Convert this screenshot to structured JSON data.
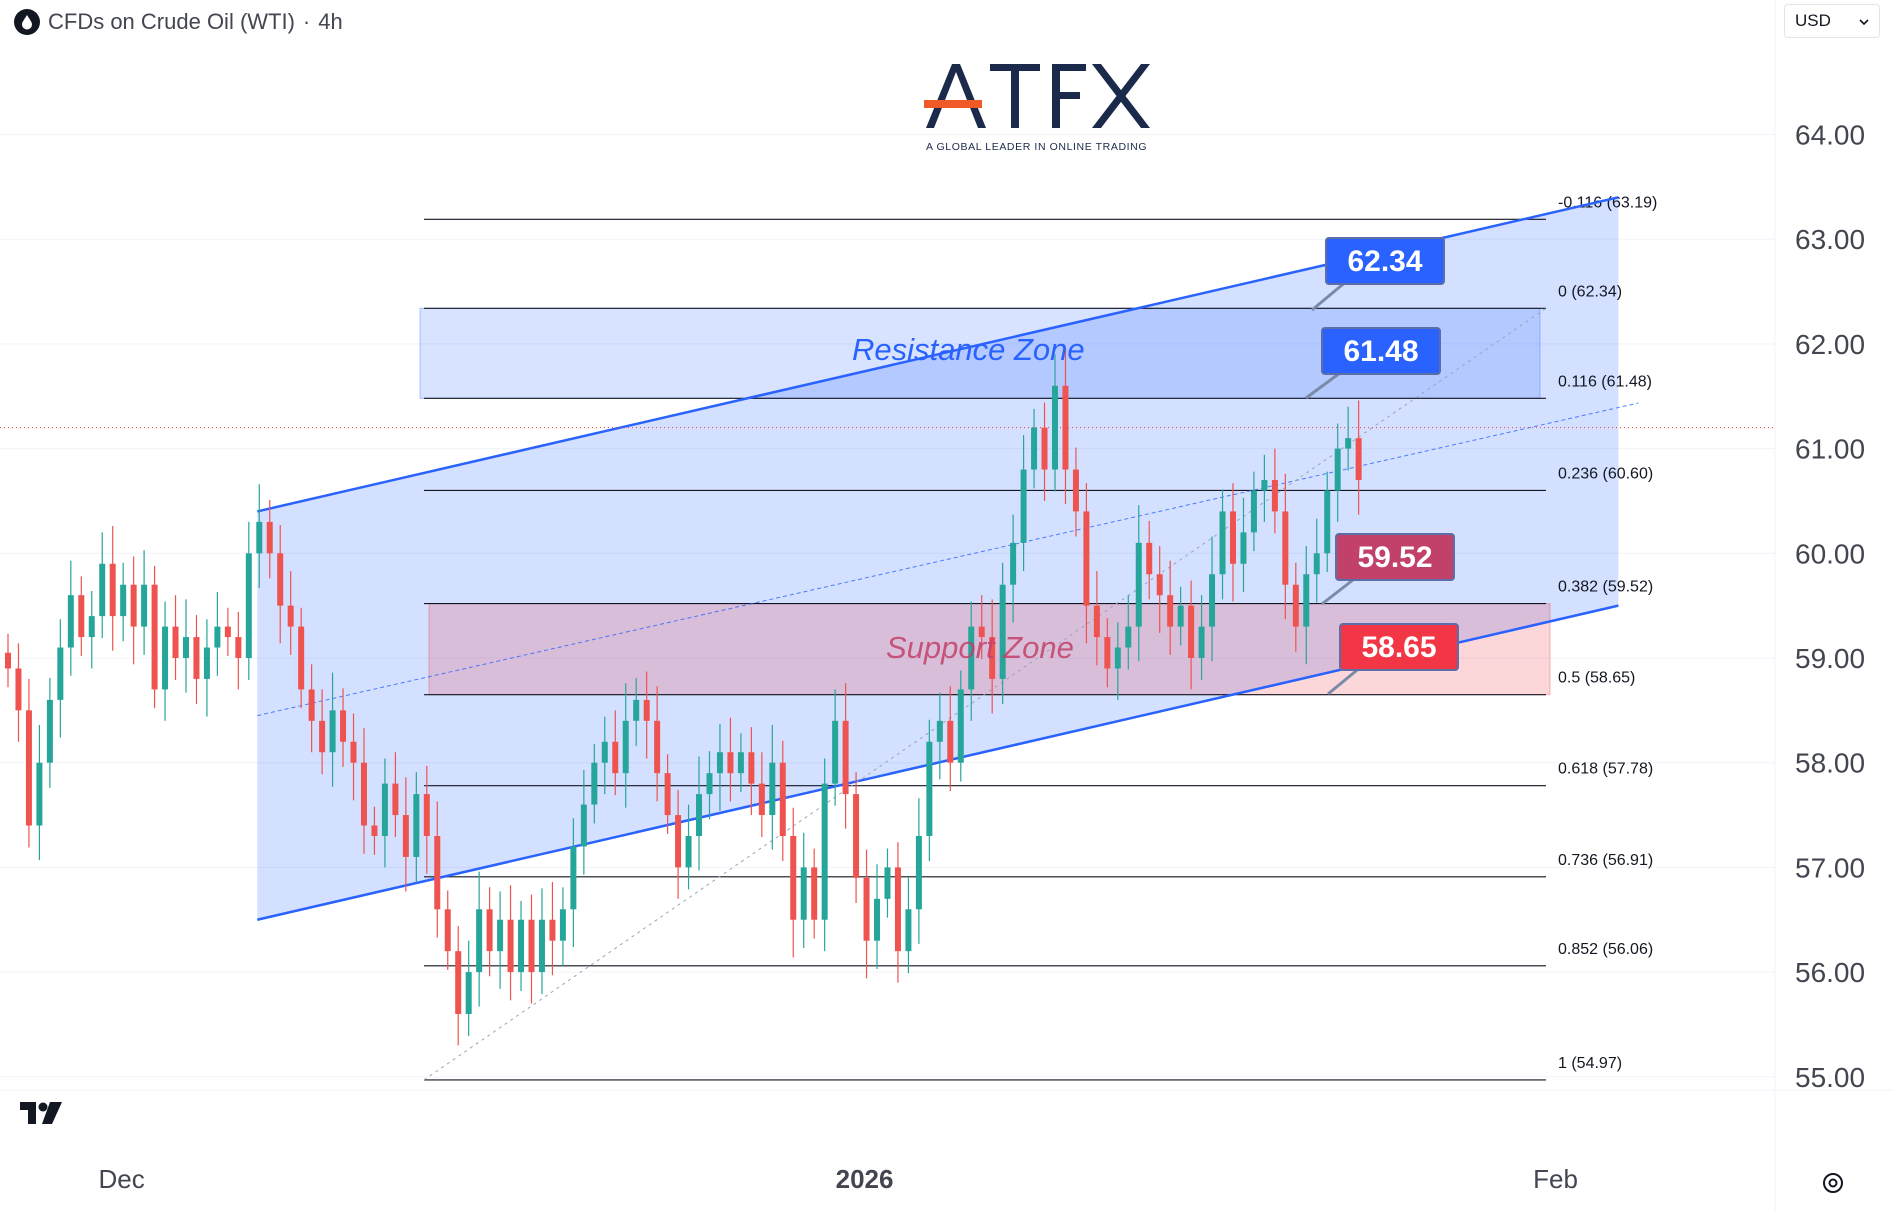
{
  "header": {
    "symbol": "CFDs on Crude Oil (WTI)",
    "separator": "·",
    "interval": "4h"
  },
  "currency": {
    "label": "USD"
  },
  "logo": {
    "name": "ATFX",
    "tagline": "A GLOBAL LEADER IN ONLINE TRADING"
  },
  "colors": {
    "up": "#26a69a",
    "down": "#ef5350",
    "channel": "#2962ff",
    "resistance": "#2962ff",
    "support": "#f23645",
    "support_label": "#c2416a"
  },
  "chart_data": {
    "type": "candlestick",
    "symbol": "CFDs on Crude Oil (WTI)",
    "interval": "4h",
    "ylim": [
      54.3,
      65.3
    ],
    "yticks": [
      {
        "value": 64,
        "label": "64.00"
      },
      {
        "value": 63,
        "label": "63.00"
      },
      {
        "value": 62,
        "label": "62.00"
      },
      {
        "value": 61,
        "label": "61.00"
      },
      {
        "value": 60,
        "label": "60.00"
      },
      {
        "value": 59,
        "label": "59.00"
      },
      {
        "value": 58,
        "label": "58.00"
      },
      {
        "value": 57,
        "label": "57.00"
      },
      {
        "value": 56,
        "label": "56.00"
      },
      {
        "value": 55,
        "label": "55.00"
      }
    ],
    "xticks": [
      {
        "label": "Dec",
        "index": 12
      },
      {
        "label": "2026",
        "index": 82
      },
      {
        "label": "Feb",
        "index": 148
      }
    ],
    "candles_close": [
      58.9,
      58.5,
      57.4,
      58.0,
      58.6,
      59.1,
      59.6,
      59.2,
      59.4,
      59.9,
      59.4,
      59.7,
      59.3,
      59.7,
      58.7,
      59.3,
      59.0,
      59.2,
      58.8,
      59.1,
      59.3,
      59.2,
      59.0,
      60.0,
      60.3,
      60.0,
      59.5,
      59.3,
      58.7,
      58.4,
      58.1,
      58.5,
      58.2,
      58.0,
      57.4,
      57.3,
      57.8,
      57.5,
      57.1,
      57.7,
      57.3,
      56.6,
      56.2,
      55.6,
      56.0,
      56.6,
      56.2,
      56.5,
      56.0,
      56.5,
      56.0,
      56.5,
      56.3,
      56.6,
      57.2,
      57.6,
      58.0,
      58.2,
      57.9,
      58.4,
      58.6,
      58.4,
      57.9,
      57.5,
      57.0,
      57.3,
      57.7,
      57.9,
      58.1,
      57.9,
      58.1,
      57.8,
      57.5,
      58.0,
      57.3,
      56.5,
      57.0,
      56.5,
      57.8,
      58.4,
      57.7,
      56.9,
      56.3,
      56.7,
      57.0,
      56.2,
      56.6,
      57.3,
      58.2,
      58.4,
      58.0,
      58.7,
      59.3,
      59.2,
      58.8,
      59.7,
      60.1,
      60.8,
      61.2,
      60.8,
      61.6,
      60.8,
      60.4,
      59.5,
      59.2,
      58.9,
      59.1,
      59.3,
      60.1,
      59.8,
      59.6,
      59.3,
      59.5,
      59.0,
      59.3,
      59.8,
      60.4,
      59.9,
      60.2,
      60.6,
      60.7,
      60.4,
      59.7,
      59.3,
      59.8,
      60.0,
      60.6,
      61.0,
      61.1,
      60.7
    ],
    "candle_count_note": "",
    "horizontal_levels": [
      {
        "ratio": "-0.116",
        "value": 63.19,
        "label": "-0.116 (63.19)"
      },
      {
        "ratio": "0",
        "value": 62.34,
        "label": "0 (62.34)"
      },
      {
        "ratio": "0.116",
        "value": 61.48,
        "label": "0.116 (61.48)"
      },
      {
        "ratio": "0.236",
        "value": 60.6,
        "label": "0.236 (60.60)"
      },
      {
        "ratio": "0.382",
        "value": 59.52,
        "label": "0.382 (59.52)"
      },
      {
        "ratio": "0.5",
        "value": 58.65,
        "label": "0.5 (58.65)"
      },
      {
        "ratio": "0.618",
        "value": 57.78,
        "label": "0.618 (57.78)"
      },
      {
        "ratio": "0.736",
        "value": 56.91,
        "label": "0.736 (56.91)"
      },
      {
        "ratio": "0.852",
        "value": 56.06,
        "label": "0.852 (56.06)"
      },
      {
        "ratio": "1",
        "value": 54.97,
        "label": "1 (54.97)"
      }
    ],
    "zones": [
      {
        "name": "Resistance Zone",
        "from": 61.48,
        "to": 62.34
      },
      {
        "name": "Support Zone",
        "from": 58.65,
        "to": 59.52
      }
    ],
    "price_callouts": [
      {
        "label": "62.34",
        "kind": "resistance"
      },
      {
        "label": "61.48",
        "kind": "resistance"
      },
      {
        "label": "59.52",
        "kind": "support"
      },
      {
        "label": "58.65",
        "kind": "support"
      }
    ],
    "channel": {
      "upper": [
        {
          "i": 24,
          "v": 60.4
        },
        {
          "i": 154,
          "v": 63.4
        }
      ],
      "lower": [
        {
          "i": 24,
          "v": 56.5
        },
        {
          "i": 154,
          "v": 59.5
        }
      ]
    },
    "current_price_line": 61.2
  }
}
